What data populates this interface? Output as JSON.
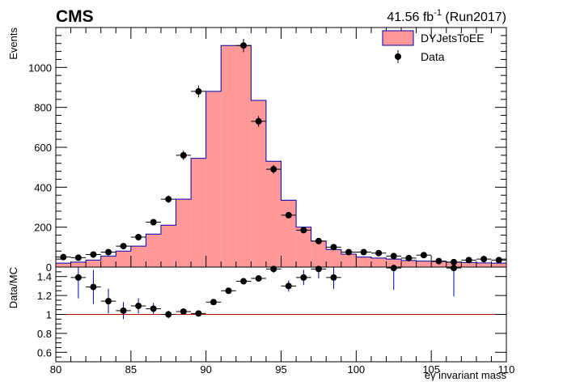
{
  "header": {
    "experiment": "CMS",
    "lumi_value": "41.56 fb",
    "lumi_exp": "-1",
    "lumi_run": " (Run2017)"
  },
  "chart_data": [
    {
      "type": "bar",
      "panel": "main",
      "ylabel": "Events",
      "xlim": [
        80,
        110
      ],
      "ylim": [
        0,
        1200
      ],
      "yticks": [
        0,
        200,
        400,
        600,
        800,
        1000
      ],
      "bin_edges": [
        80,
        81,
        82,
        83,
        84,
        85,
        86,
        87,
        88,
        89,
        90,
        91,
        92,
        93,
        94,
        95,
        96,
        97,
        98,
        99,
        100,
        101,
        102,
        103,
        104,
        105,
        106,
        107,
        108,
        109,
        110
      ],
      "series": [
        {
          "name": "DYJetsToEE",
          "kind": "histogram",
          "color": "#ff9999",
          "edge_color": "#0000aa",
          "values": [
            20,
            25,
            35,
            55,
            80,
            105,
            165,
            210,
            340,
            545,
            880,
            1110,
            1110,
            835,
            530,
            335,
            200,
            130,
            88,
            65,
            50,
            45,
            40,
            33,
            30,
            28,
            25,
            23,
            21,
            20
          ]
        },
        {
          "name": "Data",
          "kind": "points_with_errors",
          "color": "#000000",
          "x": [
            80.5,
            81.5,
            82.5,
            83.5,
            84.5,
            85.5,
            86.5,
            87.5,
            88.5,
            89.5,
            92.5,
            93.5,
            94.5,
            95.5,
            96.5,
            97.5,
            98.5,
            99.5,
            100.5,
            101.5,
            102.5,
            103.5,
            104.5,
            105.5,
            106.5,
            107.5,
            108.5,
            109.5
          ],
          "y": [
            50,
            47,
            63,
            75,
            105,
            150,
            225,
            340,
            560,
            880,
            1110,
            730,
            490,
            260,
            185,
            130,
            100,
            75,
            75,
            70,
            55,
            45,
            60,
            30,
            25,
            35,
            40,
            35
          ],
          "yerr": [
            8,
            7,
            8,
            9,
            10,
            12,
            15,
            18,
            24,
            30,
            33,
            27,
            22,
            16,
            14,
            11,
            10,
            9,
            9,
            8,
            7,
            7,
            8,
            6,
            5,
            6,
            6,
            6
          ]
        }
      ]
    },
    {
      "type": "scatter",
      "panel": "ratio",
      "xlabel": "eγ invariant mass",
      "ylabel": "Data/MC",
      "xlim": [
        80,
        110
      ],
      "ylim": [
        0.5,
        1.5
      ],
      "yticks": [
        0.6,
        0.8,
        1,
        1.2,
        1.4
      ],
      "xticks": [
        80,
        85,
        90,
        95,
        100,
        105,
        110
      ],
      "reference_line": 1.0,
      "reference_color": "#cc0000",
      "points": {
        "x": [
          81.5,
          82.5,
          83.5,
          84.5,
          85.5,
          86.5,
          87.5,
          88.5,
          89.5,
          90.5,
          91.5,
          92.5,
          93.5,
          94.5,
          95.5,
          96.5,
          97.5,
          98.5,
          102.5,
          106.5
        ],
        "y": [
          1.39,
          1.29,
          1.14,
          1.04,
          1.09,
          1.06,
          1.0,
          1.03,
          1.01,
          1.13,
          1.25,
          1.35,
          1.38,
          1.48,
          1.3,
          1.39,
          1.48,
          1.39,
          1.49,
          1.49
        ],
        "yerr": [
          0.22,
          0.18,
          0.13,
          0.09,
          0.08,
          0.06,
          0.04,
          0.03,
          0.02,
          0.02,
          0.02,
          0.02,
          0.03,
          0.04,
          0.06,
          0.08,
          0.1,
          0.12,
          0.23,
          0.3
        ]
      }
    }
  ]
}
